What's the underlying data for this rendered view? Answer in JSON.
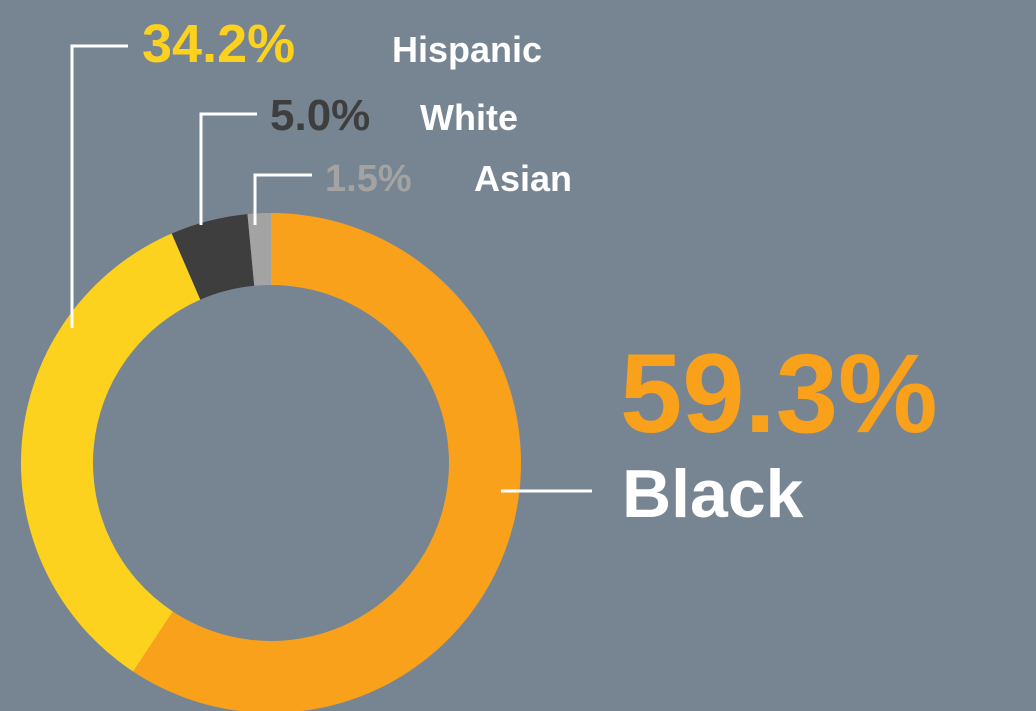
{
  "background": "#778593",
  "chart_data": {
    "type": "pie",
    "donut": true,
    "legend": "none",
    "slices": [
      {
        "label": "Black",
        "value": 59.3,
        "value_text": "59.3%",
        "color": "#F9A11B",
        "label_color": "#FFFFFF"
      },
      {
        "label": "Hispanic",
        "value": 34.2,
        "value_text": "34.2%",
        "color": "#FDD21F",
        "label_color": "#FFFFFF"
      },
      {
        "label": "White",
        "value": 5.0,
        "value_text": "5.0%",
        "color": "#3E3E3F",
        "label_color": "#FFFFFF"
      },
      {
        "label": "Asian",
        "value": 1.5,
        "value_text": "1.5%",
        "color": "#A3A3A3",
        "label_color": "#FFFFFF"
      }
    ]
  }
}
